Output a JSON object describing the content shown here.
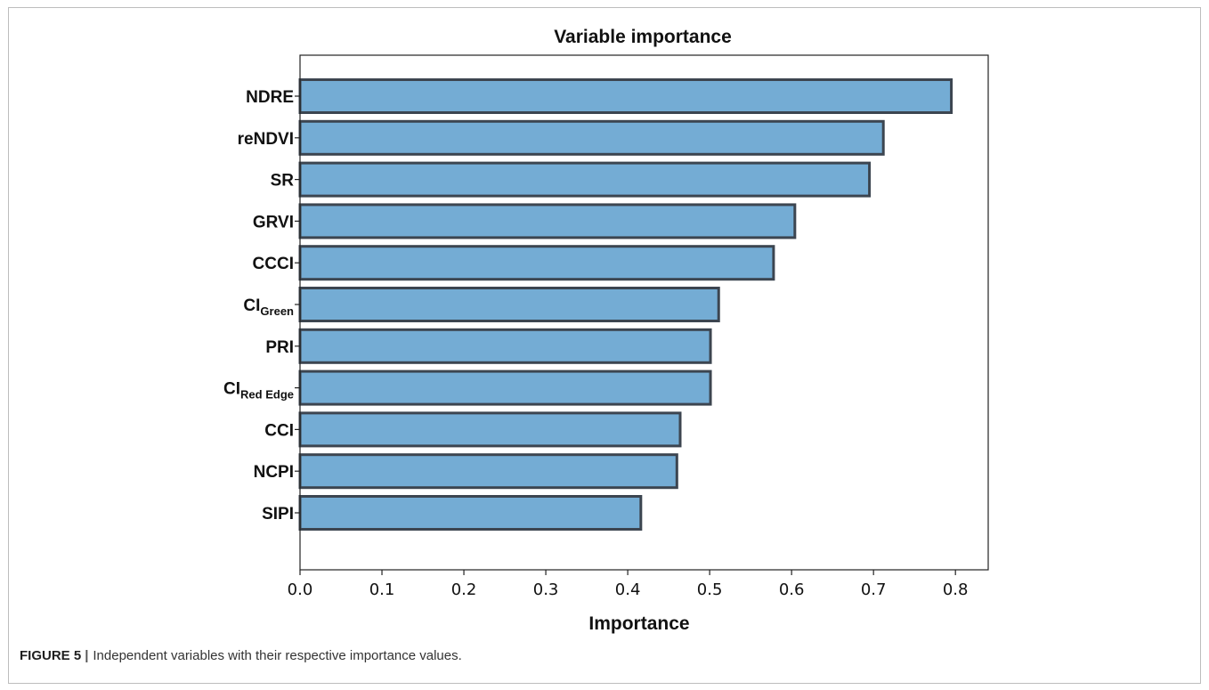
{
  "chart_data": {
    "type": "bar",
    "orientation": "horizontal",
    "title": "Variable importance",
    "xlabel": "Importance",
    "ylabel": "",
    "xlim": [
      0.0,
      0.84
    ],
    "xticks": [
      "0.0",
      "0.1",
      "0.2",
      "0.3",
      "0.4",
      "0.5",
      "0.6",
      "0.7",
      "0.8"
    ],
    "categories": [
      {
        "main": "NDRE",
        "sub": ""
      },
      {
        "main": "reNDVI",
        "sub": ""
      },
      {
        "main": "SR",
        "sub": ""
      },
      {
        "main": "GRVI",
        "sub": ""
      },
      {
        "main": "CCCI",
        "sub": ""
      },
      {
        "main": "CI",
        "sub": "Green"
      },
      {
        "main": "PRI",
        "sub": ""
      },
      {
        "main": "CI",
        "sub": "Red Edge"
      },
      {
        "main": "CCI",
        "sub": ""
      },
      {
        "main": "NCPI",
        "sub": ""
      },
      {
        "main": "SIPI",
        "sub": ""
      }
    ],
    "values": [
      0.795,
      0.712,
      0.695,
      0.604,
      0.578,
      0.511,
      0.501,
      0.501,
      0.464,
      0.46,
      0.416
    ],
    "bar_color": "#74acd4",
    "bar_edge_color": "#3c4550",
    "grid": false,
    "legend": "none"
  },
  "caption": {
    "label": "FIGURE 5",
    "separator": "|",
    "text": "Independent variables with their respective importance values."
  }
}
